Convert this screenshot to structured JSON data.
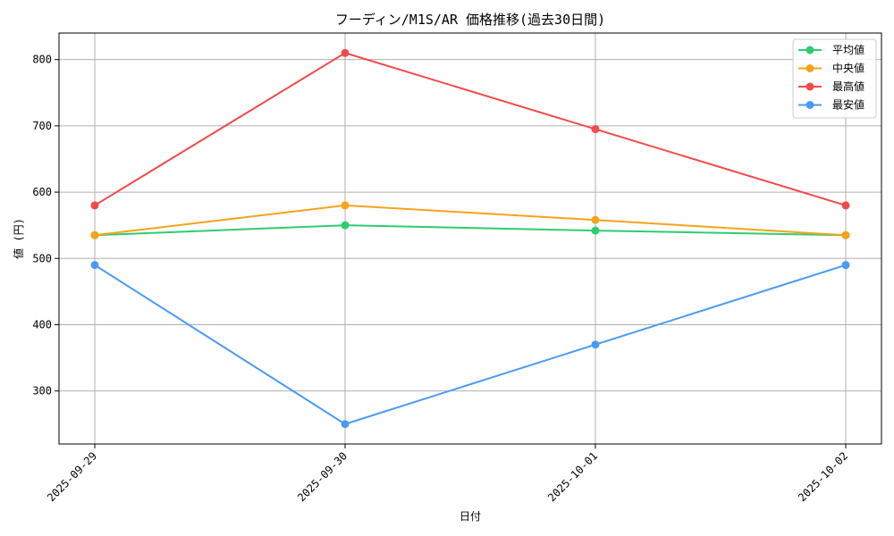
{
  "chart_data": {
    "type": "line",
    "title": "フーディン/M1S/AR 価格推移(過去30日間)",
    "xlabel": "日付",
    "ylabel": "値 (円)",
    "categories": [
      "2025-09-29",
      "2025-09-30",
      "2025-10-01",
      "2025-10-02"
    ],
    "ylim": [
      220,
      840
    ],
    "yticks": [
      300,
      400,
      500,
      600,
      700,
      800
    ],
    "grid": true,
    "legend_position": "top-right",
    "series": [
      {
        "name": "平均値",
        "color": "#2ecc71",
        "values": [
          535,
          550,
          542,
          535
        ]
      },
      {
        "name": "中央値",
        "color": "#f5a31a",
        "values": [
          535,
          580,
          558,
          535
        ]
      },
      {
        "name": "最高値",
        "color": "#f24a4a",
        "values": [
          580,
          810,
          695,
          580
        ]
      },
      {
        "name": "最安値",
        "color": "#4a9af2",
        "values": [
          490,
          250,
          370,
          490
        ]
      }
    ]
  }
}
